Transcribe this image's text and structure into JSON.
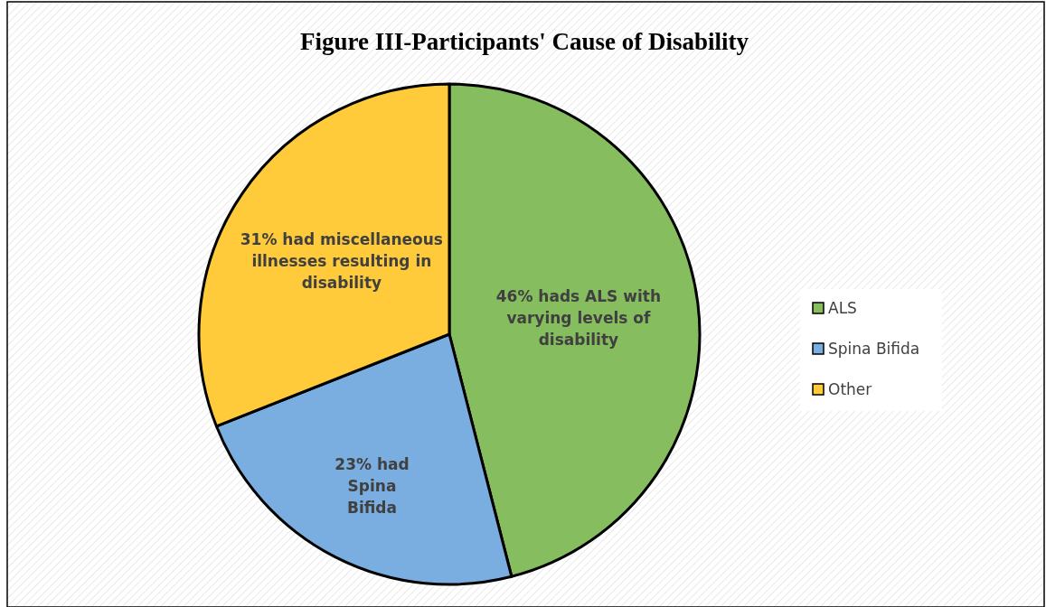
{
  "chart_data": {
    "type": "pie",
    "title": "Figure III-Participants' Cause of Disability",
    "categories": [
      "ALS",
      "Spina Bifida",
      "Other"
    ],
    "values": [
      46,
      23,
      31
    ],
    "colors": [
      "#85bd5f",
      "#7aaee0",
      "#ffcb3a"
    ],
    "value_labels": [
      "46% hads ALS with varying levels of disability",
      "23% had Spina Bifida",
      "31% had miscellaneous illnesses resulting in disability"
    ],
    "legend": "right"
  }
}
